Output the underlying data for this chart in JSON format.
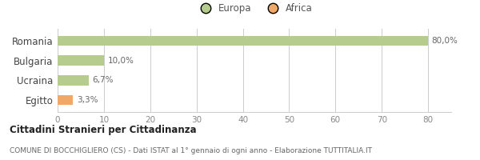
{
  "categories": [
    "Romania",
    "Bulgaria",
    "Ucraina",
    "Egitto"
  ],
  "values": [
    80.0,
    10.0,
    6.7,
    3.3
  ],
  "colors": [
    "#b5cc8e",
    "#b5cc8e",
    "#b5cc8e",
    "#f0a868"
  ],
  "labels": [
    "80,0%",
    "10,0%",
    "6,7%",
    "3,3%"
  ],
  "legend_items": [
    {
      "label": "Europa",
      "color": "#b5cc8e"
    },
    {
      "label": "Africa",
      "color": "#f0a868"
    }
  ],
  "xlim": [
    0,
    85
  ],
  "xticks": [
    0,
    10,
    20,
    30,
    40,
    50,
    60,
    70,
    80
  ],
  "title_main": "Cittadini Stranieri per Cittadinanza",
  "title_sub": "COMUNE DI BOCCHIGLIERO (CS) - Dati ISTAT al 1° gennaio di ogni anno - Elaborazione TUTTITALIA.IT",
  "background_color": "#ffffff",
  "bar_height": 0.5,
  "grid_color": "#cccccc"
}
